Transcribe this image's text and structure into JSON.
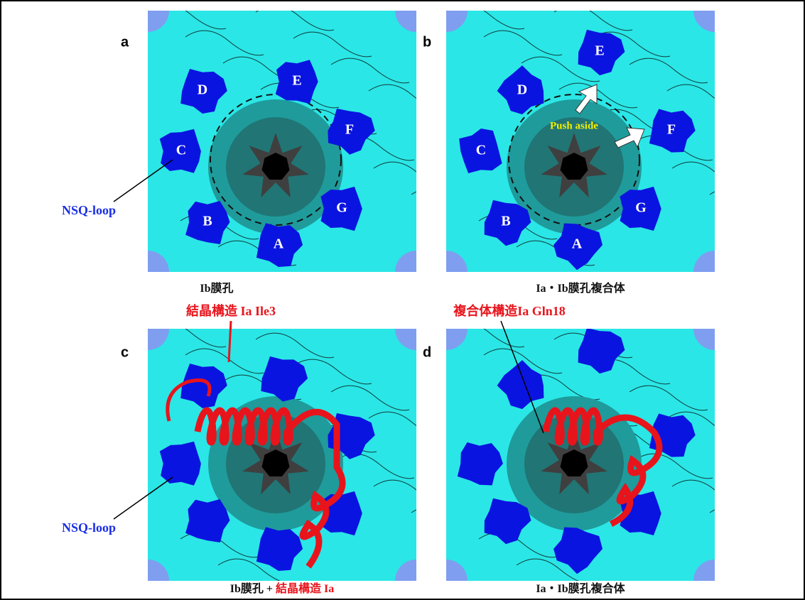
{
  "panels": [
    {
      "letter": "a",
      "caption": [
        "Ib膜孔"
      ],
      "loop_labels": [
        "D",
        "E",
        "F",
        "G",
        "A",
        "B",
        "C"
      ],
      "callout": "NSQ-loop"
    },
    {
      "letter": "b",
      "caption": [
        "Ia・Ib膜孔複合体"
      ],
      "loop_labels": [
        "D",
        "E",
        "F",
        "G",
        "A",
        "B",
        "C"
      ],
      "annotation": "Push aside"
    },
    {
      "letter": "c",
      "caption": [
        "Ib膜孔 + ",
        "結晶構造 Ia"
      ],
      "callout": "NSQ-loop",
      "annotation": "結晶構造 Ia Ile3"
    },
    {
      "letter": "d",
      "caption": [
        "Ia・Ib膜孔複合体"
      ],
      "annotation": "複合体構造Ia Gln18"
    }
  ]
}
